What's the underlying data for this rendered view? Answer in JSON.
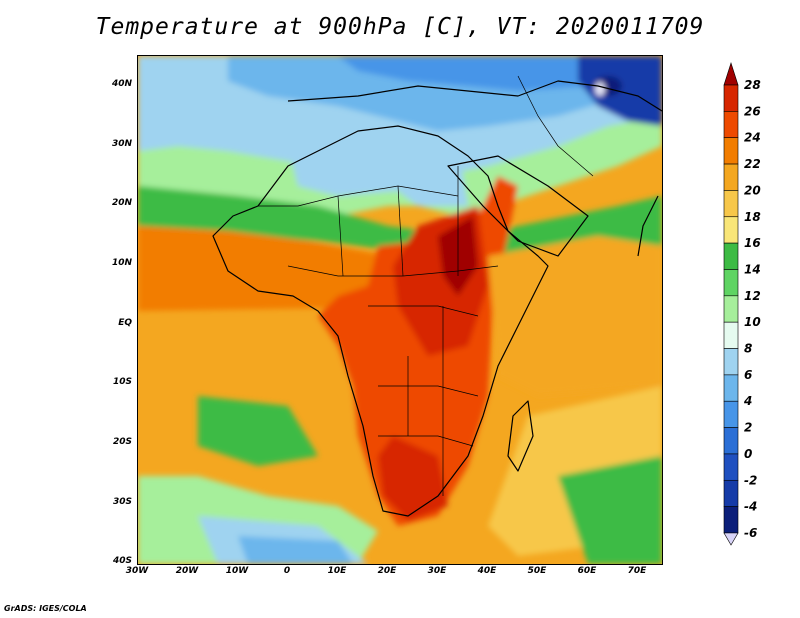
{
  "title": "Temperature at 900hPa [C], VT: 2020011709",
  "footer": "GrADS: IGES/COLA",
  "map": {
    "region": "Africa",
    "lat_labels": [
      "40N",
      "30N",
      "20N",
      "10N",
      "EQ",
      "10S",
      "20S",
      "30S",
      "40S"
    ],
    "lon_labels": [
      "30W",
      "20W",
      "10W",
      "0",
      "10E",
      "20E",
      "30E",
      "40E",
      "50E",
      "60E",
      "70E"
    ],
    "lat_range": [
      -40,
      45
    ],
    "lon_range": [
      -30,
      75
    ]
  },
  "colorbar": {
    "labels": [
      "28",
      "26",
      "24",
      "22",
      "20",
      "18",
      "16",
      "14",
      "12",
      "10",
      "8",
      "6",
      "4",
      "2",
      "0",
      "-2",
      "-4",
      "-6"
    ],
    "colors": [
      "#a00000",
      "#d72600",
      "#ee4a00",
      "#f27d00",
      "#f4a720",
      "#f7c74a",
      "#f9e678",
      "#3dbb44",
      "#5fd463",
      "#a6ef9b",
      "#e6fbf0",
      "#9fd3f0",
      "#6cb6ec",
      "#4795e8",
      "#2b6fd6",
      "#1f50c0",
      "#153ba8",
      "#0c1f7a",
      "#d8d4f8"
    ]
  }
}
